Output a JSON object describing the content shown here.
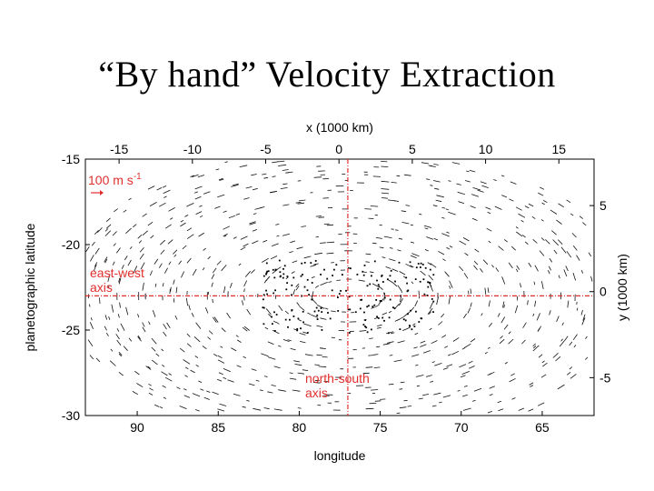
{
  "slide": {
    "title": "“By hand” Velocity Extraction"
  },
  "chart_data": {
    "type": "scatter",
    "description_kind": "velocity vector field",
    "top_axis": {
      "label": "x (1000 km)",
      "ticks": [
        -15,
        -10,
        -5,
        0,
        5,
        10,
        15
      ],
      "range": [
        -17.3,
        17.4
      ]
    },
    "bottom_axis": {
      "label": "longitude",
      "ticks": [
        90,
        85,
        80,
        75,
        70,
        65
      ],
      "range": [
        93.2,
        61.8
      ]
    },
    "left_axis": {
      "label": "planetographic latitude",
      "ticks": [
        -15,
        -20,
        -25,
        -30
      ],
      "range": [
        -30,
        -15
      ]
    },
    "right_axis": {
      "label": "y (1000 km)",
      "ticks": [
        5,
        0,
        -5
      ],
      "range": [
        -7.2,
        7.7
      ]
    },
    "annotations": {
      "scale": {
        "value": "100",
        "unit": "m s",
        "exponent": "-1"
      },
      "east_west": [
        "east-west",
        "axis"
      ],
      "north_south": [
        "north-south",
        "axis"
      ]
    },
    "reference_lines": {
      "east_west_latitude": -23.0,
      "north_south_longitude": 77.0
    },
    "grid": false,
    "colors": {
      "annotation": "#e0302e",
      "vectors": "#000000"
    }
  }
}
